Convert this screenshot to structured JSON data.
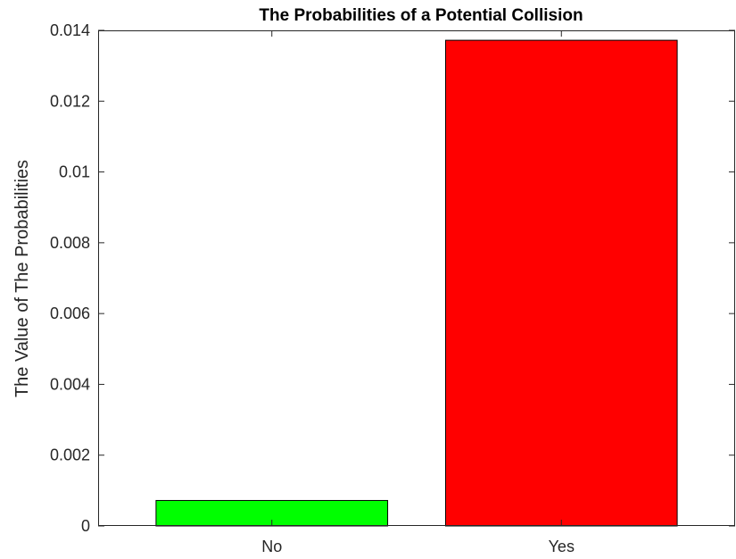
{
  "chart_data": {
    "type": "bar",
    "title": "The Probabilities of a Potential Collision",
    "xlabel": "",
    "ylabel": "The Value of The Probabilities",
    "categories": [
      "No",
      "Yes"
    ],
    "values": [
      0.00072,
      0.01372
    ],
    "bar_colors": [
      "#00ff00",
      "#ff0000"
    ],
    "ylim": [
      0,
      0.014
    ],
    "yticks": [
      0,
      0.002,
      0.004,
      0.006,
      0.008,
      0.01,
      0.012,
      0.014
    ],
    "ytick_labels": [
      "0",
      "0.002",
      "0.004",
      "0.006",
      "0.008",
      "0.01",
      "0.012",
      "0.014"
    ],
    "grid": false,
    "legend": false
  }
}
